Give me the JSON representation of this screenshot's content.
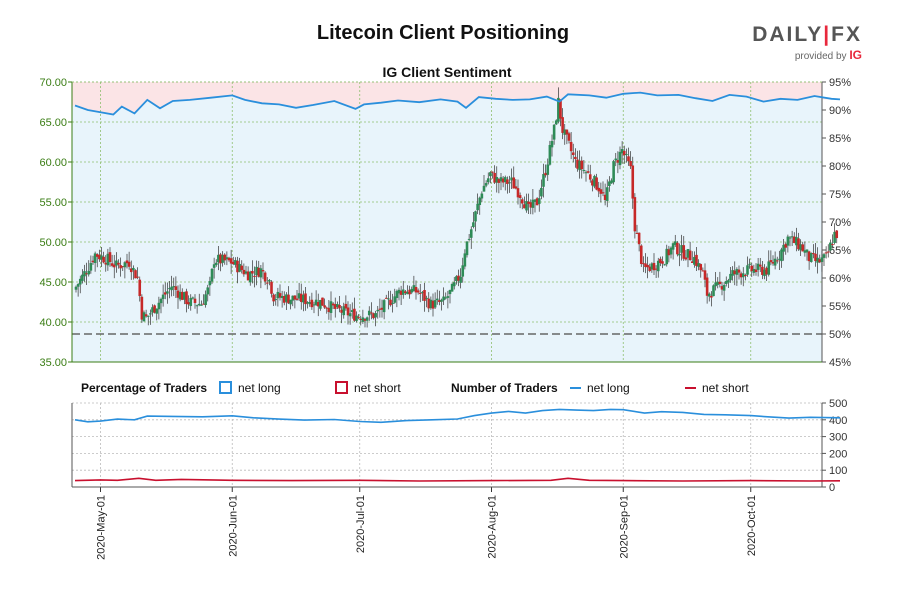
{
  "title": "Litecoin Client Positioning",
  "subtitle": "IG Client Sentiment",
  "brand": {
    "name_a": "DAILY",
    "name_sep": "|",
    "name_b": "FX",
    "provided_by": "provided by",
    "ig": "IG"
  },
  "colors": {
    "long": "#2a8fdc",
    "short": "#c8102e",
    "candle_up": "#2e8b57",
    "candle_down": "#c62828",
    "bg_long": "#e8f4fb",
    "bg_short": "#fbe4e6",
    "axis_green": "#3a7d14",
    "grid": "#8fbf6f"
  },
  "legend": {
    "pct_title": "Percentage of Traders",
    "net_long": "net long",
    "net_short": "net short",
    "num_title": "Number of Traders",
    "num_long": "net long",
    "num_short": "net short"
  },
  "chart_data": [
    {
      "type": "candlestick",
      "title": "IG Client Sentiment",
      "ylim": [
        35,
        70
      ],
      "y_ticks": [
        "35.00",
        "40.00",
        "45.00",
        "50.00",
        "55.00",
        "60.00",
        "65.00",
        "70.00"
      ],
      "y2lim": [
        45,
        95
      ],
      "y2_ticks": [
        "45%",
        "50%",
        "55%",
        "60%",
        "65%",
        "70%",
        "75%",
        "80%",
        "85%",
        "90%",
        "95%"
      ],
      "reference_line_pct": 50,
      "x_ticks": [
        "2020-May-01",
        "2020-Jun-01",
        "2020-Jul-01",
        "2020-Aug-01",
        "2020-Sep-01",
        "2020-Oct-01"
      ],
      "candle_interval": "12h",
      "start": "2020-04-25",
      "close_path": [
        [
          "2020-04-25",
          44.0
        ],
        [
          "2020-04-28",
          46.5
        ],
        [
          "2020-04-30",
          48.5
        ],
        [
          "2020-05-03",
          47.8
        ],
        [
          "2020-05-05",
          47.0
        ],
        [
          "2020-05-08",
          47.5
        ],
        [
          "2020-05-10",
          45.5
        ],
        [
          "2020-05-11",
          41.0
        ],
        [
          "2020-05-12",
          40.5
        ],
        [
          "2020-05-15",
          42.5
        ],
        [
          "2020-05-18",
          44.5
        ],
        [
          "2020-05-20",
          43.5
        ],
        [
          "2020-05-22",
          42.5
        ],
        [
          "2020-05-25",
          42.3
        ],
        [
          "2020-05-27",
          44.5
        ],
        [
          "2020-05-28",
          47.8
        ],
        [
          "2020-06-01",
          47.5
        ],
        [
          "2020-06-05",
          46.0
        ],
        [
          "2020-06-08",
          46.5
        ],
        [
          "2020-06-10",
          45.2
        ],
        [
          "2020-06-11",
          43.2
        ],
        [
          "2020-06-14",
          43.0
        ],
        [
          "2020-06-18",
          42.8
        ],
        [
          "2020-06-22",
          42.5
        ],
        [
          "2020-06-26",
          41.5
        ],
        [
          "2020-06-29",
          41.0
        ],
        [
          "2020-07-01",
          40.8
        ],
        [
          "2020-07-05",
          40.9
        ],
        [
          "2020-07-08",
          42.5
        ],
        [
          "2020-07-11",
          44.0
        ],
        [
          "2020-07-15",
          43.8
        ],
        [
          "2020-07-18",
          42.2
        ],
        [
          "2020-07-21",
          42.5
        ],
        [
          "2020-07-23",
          44.0
        ],
        [
          "2020-07-25",
          46.0
        ],
        [
          "2020-07-26",
          49.0
        ],
        [
          "2020-07-28",
          52.5
        ],
        [
          "2020-07-30",
          56.5
        ],
        [
          "2020-08-01",
          58.5
        ],
        [
          "2020-08-03",
          57.5
        ],
        [
          "2020-08-06",
          57.5
        ],
        [
          "2020-08-08",
          56.0
        ],
        [
          "2020-08-10",
          54.0
        ],
        [
          "2020-08-12",
          55.0
        ],
        [
          "2020-08-14",
          59.0
        ],
        [
          "2020-08-16",
          64.0
        ],
        [
          "2020-08-17",
          67.5
        ],
        [
          "2020-08-18",
          64.0
        ],
        [
          "2020-08-21",
          60.0
        ],
        [
          "2020-08-24",
          58.5
        ],
        [
          "2020-08-27",
          56.5
        ],
        [
          "2020-08-28",
          55.0
        ],
        [
          "2020-08-30",
          59.5
        ],
        [
          "2020-09-01",
          61.5
        ],
        [
          "2020-09-03",
          59.0
        ],
        [
          "2020-09-04",
          52.0
        ],
        [
          "2020-09-06",
          46.5
        ],
        [
          "2020-09-08",
          47.0
        ],
        [
          "2020-09-11",
          48.0
        ],
        [
          "2020-09-13",
          49.5
        ],
        [
          "2020-09-16",
          48.5
        ],
        [
          "2020-09-18",
          48.0
        ],
        [
          "2020-09-20",
          46.0
        ],
        [
          "2020-09-21",
          43.5
        ],
        [
          "2020-09-24",
          44.5
        ],
        [
          "2020-09-27",
          46.0
        ],
        [
          "2020-10-01",
          46.5
        ],
        [
          "2020-10-05",
          46.5
        ],
        [
          "2020-10-08",
          48.5
        ],
        [
          "2020-10-10",
          50.5
        ],
        [
          "2020-10-13",
          49.5
        ],
        [
          "2020-10-15",
          48.0
        ],
        [
          "2020-10-17",
          47.5
        ],
        [
          "2020-10-19",
          48.0
        ],
        [
          "2020-10-21",
          51.0
        ]
      ],
      "sentiment_pct_long": [
        [
          "2020-04-25",
          90.8
        ],
        [
          "2020-04-28",
          90.0
        ],
        [
          "2020-05-01",
          89.6
        ],
        [
          "2020-05-04",
          89.2
        ],
        [
          "2020-05-06",
          90.6
        ],
        [
          "2020-05-09",
          89.4
        ],
        [
          "2020-05-12",
          91.8
        ],
        [
          "2020-05-15",
          90.3
        ],
        [
          "2020-05-18",
          91.6
        ],
        [
          "2020-05-22",
          91.8
        ],
        [
          "2020-05-27",
          92.2
        ],
        [
          "2020-06-01",
          92.6
        ],
        [
          "2020-06-04",
          91.8
        ],
        [
          "2020-06-08",
          91.2
        ],
        [
          "2020-06-12",
          91.0
        ],
        [
          "2020-06-16",
          90.4
        ],
        [
          "2020-06-20",
          90.9
        ],
        [
          "2020-06-25",
          91.6
        ],
        [
          "2020-06-30",
          90.2
        ],
        [
          "2020-07-02",
          91.0
        ],
        [
          "2020-07-06",
          91.3
        ],
        [
          "2020-07-10",
          91.7
        ],
        [
          "2020-07-15",
          91.4
        ],
        [
          "2020-07-20",
          91.9
        ],
        [
          "2020-07-24",
          91.5
        ],
        [
          "2020-07-26",
          90.4
        ],
        [
          "2020-07-29",
          92.3
        ],
        [
          "2020-08-02",
          92.0
        ],
        [
          "2020-08-06",
          91.8
        ],
        [
          "2020-08-10",
          91.9
        ],
        [
          "2020-08-14",
          92.4
        ],
        [
          "2020-08-17",
          91.5
        ],
        [
          "2020-08-19",
          92.8
        ],
        [
          "2020-08-24",
          92.6
        ],
        [
          "2020-08-28",
          92.2
        ],
        [
          "2020-09-01",
          92.9
        ],
        [
          "2020-09-05",
          93.1
        ],
        [
          "2020-09-09",
          92.6
        ],
        [
          "2020-09-14",
          92.7
        ],
        [
          "2020-09-18",
          92.1
        ],
        [
          "2020-09-22",
          91.6
        ],
        [
          "2020-09-26",
          92.7
        ],
        [
          "2020-09-30",
          92.4
        ],
        [
          "2020-10-04",
          91.5
        ],
        [
          "2020-10-08",
          92.0
        ],
        [
          "2020-10-12",
          91.8
        ],
        [
          "2020-10-16",
          92.5
        ],
        [
          "2020-10-20",
          92.0
        ],
        [
          "2020-10-22",
          91.9
        ]
      ]
    },
    {
      "type": "line",
      "title": "Number of Traders",
      "ylim": [
        0,
        500
      ],
      "y_ticks": [
        "0",
        "100",
        "200",
        "300",
        "400",
        "500"
      ],
      "series": [
        {
          "name": "net long",
          "color": "#2a8fdc",
          "points": [
            [
              "2020-04-25",
              400
            ],
            [
              "2020-04-28",
              388
            ],
            [
              "2020-05-01",
              392
            ],
            [
              "2020-05-05",
              404
            ],
            [
              "2020-05-09",
              400
            ],
            [
              "2020-05-12",
              422
            ],
            [
              "2020-05-18",
              420
            ],
            [
              "2020-05-25",
              418
            ],
            [
              "2020-06-01",
              424
            ],
            [
              "2020-06-06",
              412
            ],
            [
              "2020-06-12",
              404
            ],
            [
              "2020-06-18",
              398
            ],
            [
              "2020-06-25",
              402
            ],
            [
              "2020-07-01",
              390
            ],
            [
              "2020-07-06",
              385
            ],
            [
              "2020-07-12",
              395
            ],
            [
              "2020-07-18",
              400
            ],
            [
              "2020-07-24",
              405
            ],
            [
              "2020-07-28",
              425
            ],
            [
              "2020-08-01",
              440
            ],
            [
              "2020-08-05",
              450
            ],
            [
              "2020-08-09",
              440
            ],
            [
              "2020-08-13",
              455
            ],
            [
              "2020-08-17",
              462
            ],
            [
              "2020-08-21",
              458
            ],
            [
              "2020-08-25",
              455
            ],
            [
              "2020-08-29",
              462
            ],
            [
              "2020-09-01",
              460
            ],
            [
              "2020-09-06",
              440
            ],
            [
              "2020-09-10",
              448
            ],
            [
              "2020-09-15",
              444
            ],
            [
              "2020-09-20",
              432
            ],
            [
              "2020-09-25",
              430
            ],
            [
              "2020-10-01",
              425
            ],
            [
              "2020-10-05",
              418
            ],
            [
              "2020-10-10",
              410
            ],
            [
              "2020-10-15",
              415
            ],
            [
              "2020-10-22",
              412
            ]
          ]
        },
        {
          "name": "net short",
          "color": "#c8102e",
          "points": [
            [
              "2020-04-25",
              38
            ],
            [
              "2020-05-01",
              42
            ],
            [
              "2020-05-05",
              40
            ],
            [
              "2020-05-10",
              52
            ],
            [
              "2020-05-14",
              40
            ],
            [
              "2020-05-20",
              45
            ],
            [
              "2020-06-01",
              40
            ],
            [
              "2020-06-15",
              38
            ],
            [
              "2020-07-01",
              40
            ],
            [
              "2020-07-15",
              36
            ],
            [
              "2020-08-01",
              38
            ],
            [
              "2020-08-15",
              40
            ],
            [
              "2020-08-19",
              52
            ],
            [
              "2020-08-24",
              40
            ],
            [
              "2020-09-01",
              38
            ],
            [
              "2020-09-15",
              36
            ],
            [
              "2020-10-01",
              38
            ],
            [
              "2020-10-15",
              36
            ],
            [
              "2020-10-22",
              37
            ]
          ]
        }
      ]
    }
  ]
}
